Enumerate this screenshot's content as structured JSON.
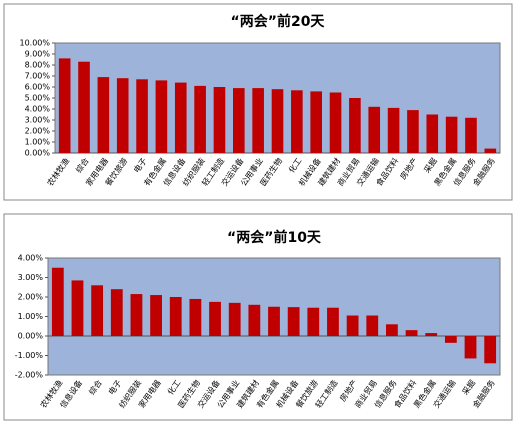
{
  "chart_data": [
    {
      "type": "bar",
      "title": "“两会”前20天",
      "categories": [
        "农林牧渔",
        "综合",
        "家用电器",
        "餐饮旅游",
        "电子",
        "有色金属",
        "信息设备",
        "纺织服装",
        "轻工制造",
        "交运设备",
        "公用事业",
        "医药生物",
        "化工",
        "机械设备",
        "建筑建材",
        "商业贸易",
        "交通运输",
        "食品饮料",
        "房地产",
        "采掘",
        "黑色金属",
        "信息服务",
        "金融服务"
      ],
      "values": [
        8.6,
        8.3,
        6.9,
        6.8,
        6.7,
        6.6,
        6.4,
        6.1,
        6.0,
        5.9,
        5.9,
        5.8,
        5.7,
        5.6,
        5.5,
        5.0,
        4.2,
        4.1,
        3.9,
        3.5,
        3.3,
        3.2,
        0.4
      ],
      "color": "#c00000",
      "ylim": [
        0,
        10
      ],
      "yticks": [
        {
          "value": 0,
          "label": "0.00%"
        },
        {
          "value": 1,
          "label": "1.00%"
        },
        {
          "value": 2,
          "label": "2.00%"
        },
        {
          "value": 3,
          "label": "3.00%"
        },
        {
          "value": 4,
          "label": "4.00%"
        },
        {
          "value": 5,
          "label": "5.00%"
        },
        {
          "value": 6,
          "label": "6.00%"
        },
        {
          "value": 7,
          "label": "7.00%"
        },
        {
          "value": 8,
          "label": "8.00%"
        },
        {
          "value": 9,
          "label": "9.00%"
        },
        {
          "value": 10,
          "label": "10.00%"
        }
      ]
    },
    {
      "type": "bar",
      "title": "“两会”前10天",
      "categories": [
        "农林牧渔",
        "信息设备",
        "综合",
        "电子",
        "纺织服装",
        "家用电器",
        "化工",
        "医药生物",
        "交运设备",
        "公用事业",
        "建筑建材",
        "有色金属",
        "机械设备",
        "餐饮旅游",
        "轻工制造",
        "房地产",
        "商业贸易",
        "信息服务",
        "食品饮料",
        "黑色金属",
        "交通运输",
        "采掘",
        "金融服务"
      ],
      "values": [
        3.5,
        2.85,
        2.6,
        2.4,
        2.15,
        2.1,
        2.0,
        1.9,
        1.75,
        1.7,
        1.6,
        1.5,
        1.48,
        1.45,
        1.45,
        1.05,
        1.05,
        0.6,
        0.3,
        0.15,
        -0.35,
        -1.15,
        -1.4
      ],
      "color": "#c00000",
      "ylim": [
        -2,
        4
      ],
      "yticks": [
        {
          "value": -2,
          "label": "-2.00%"
        },
        {
          "value": -1,
          "label": "-1.00%"
        },
        {
          "value": 0,
          "label": "0.00%"
        },
        {
          "value": 1,
          "label": "1.00%"
        },
        {
          "value": 2,
          "label": "2.00%"
        },
        {
          "value": 3,
          "label": "3.00%"
        },
        {
          "value": 4,
          "label": "4.00%"
        }
      ]
    }
  ]
}
